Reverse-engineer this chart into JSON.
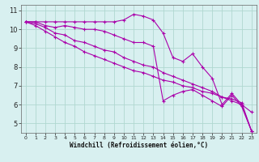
{
  "xlabel": "Windchill (Refroidissement éolien,°C)",
  "bg_color": "#d8f0f0",
  "grid_color": "#b0d8d0",
  "line_color": "#aa00aa",
  "xlim": [
    -0.5,
    23.5
  ],
  "ylim": [
    4.5,
    11.3
  ],
  "yticks": [
    5,
    6,
    7,
    8,
    9,
    10,
    11
  ],
  "xticks": [
    0,
    1,
    2,
    3,
    4,
    5,
    6,
    7,
    8,
    9,
    10,
    11,
    12,
    13,
    14,
    15,
    16,
    17,
    18,
    19,
    20,
    21,
    22,
    23
  ],
  "lines": [
    [
      10.4,
      10.4,
      10.4,
      10.4,
      10.4,
      10.4,
      10.4,
      10.4,
      10.4,
      10.4,
      10.5,
      10.8,
      10.7,
      10.5,
      9.8,
      8.5,
      8.3,
      8.7,
      8.0,
      7.4,
      6.0,
      6.6,
      6.0,
      5.6
    ],
    [
      10.4,
      10.4,
      10.2,
      10.1,
      10.2,
      10.1,
      10.0,
      10.0,
      9.9,
      9.7,
      9.5,
      9.3,
      9.3,
      9.1,
      6.2,
      6.5,
      6.7,
      6.8,
      6.5,
      6.2,
      5.9,
      6.5,
      5.9,
      4.6
    ],
    [
      10.4,
      10.3,
      10.1,
      9.8,
      9.7,
      9.4,
      9.3,
      9.1,
      8.9,
      8.8,
      8.5,
      8.3,
      8.1,
      8.0,
      7.7,
      7.5,
      7.3,
      7.1,
      6.9,
      6.7,
      6.4,
      6.2,
      6.0,
      4.6
    ],
    [
      10.4,
      10.2,
      9.9,
      9.6,
      9.3,
      9.1,
      8.8,
      8.6,
      8.4,
      8.2,
      8.0,
      7.8,
      7.7,
      7.5,
      7.3,
      7.2,
      7.0,
      6.9,
      6.7,
      6.6,
      6.4,
      6.3,
      6.1,
      4.6
    ]
  ],
  "xlabel_fontsize": 5.5,
  "tick_fontsize_x": 4.5,
  "tick_fontsize_y": 6.0,
  "marker_size": 3.0,
  "line_width": 0.8
}
